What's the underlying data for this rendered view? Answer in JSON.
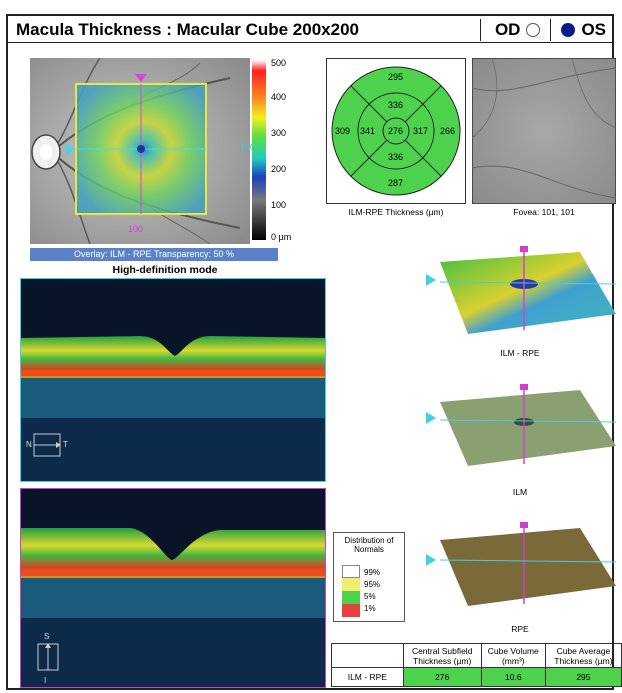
{
  "header": {
    "title": "Macula Thickness : Macular Cube 200x200",
    "od_label": "OD",
    "os_label": "OS"
  },
  "colorbar": {
    "ticks": [
      "500",
      "400",
      "300",
      "200",
      "100",
      "0 µm"
    ]
  },
  "fundus": {
    "x_marker": "100",
    "y_marker": "100",
    "overlay_label": "Overlay: ILM - RPE  Transparency: 50 %"
  },
  "mode_label": "High-definition mode",
  "etdrs": {
    "outer_top": "295",
    "outer_left": "309",
    "outer_right": "266",
    "outer_bottom": "287",
    "inner_top": "336",
    "inner_left": "341",
    "inner_right": "317",
    "inner_bottom": "336",
    "center": "276",
    "caption": "ILM-RPE Thickness (µm)"
  },
  "fovea": {
    "caption": "Fovea: 101, 101"
  },
  "bscan": {
    "n_label": "N",
    "t_label": "T",
    "s_label": "S",
    "i_label": "I"
  },
  "maps": [
    {
      "label": "ILM - RPE"
    },
    {
      "label": "ILM"
    },
    {
      "label": "RPE"
    }
  ],
  "legend": {
    "title": "Distribution of Normals",
    "items": [
      "99%",
      "95%",
      "5%",
      "1%"
    ]
  },
  "results": {
    "headers": [
      "Central Subfield Thickness (µm)",
      "Cube Volume (mm³)",
      "Cube Average Thickness (µm)"
    ],
    "row_label": "ILM - RPE",
    "values": [
      "276",
      "10.6",
      "295"
    ]
  }
}
